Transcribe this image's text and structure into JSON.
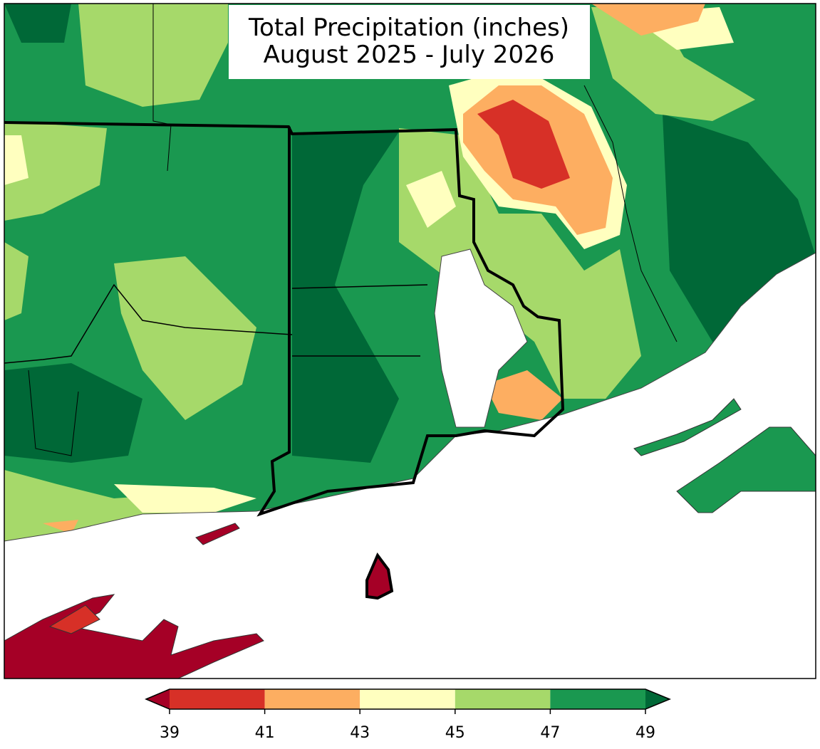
{
  "map": {
    "title": [
      "Total Precipitation (inches)",
      "August 2025 - July 2026"
    ],
    "colorbar": {
      "ticks": [
        39,
        41,
        43,
        45,
        47,
        49
      ],
      "colors": [
        "#d73027",
        "#fdae61",
        "#ffffbf",
        "#a6d96a",
        "#1a9850"
      ],
      "under_color": "#a50026",
      "over_color": "#006837"
    }
  }
}
